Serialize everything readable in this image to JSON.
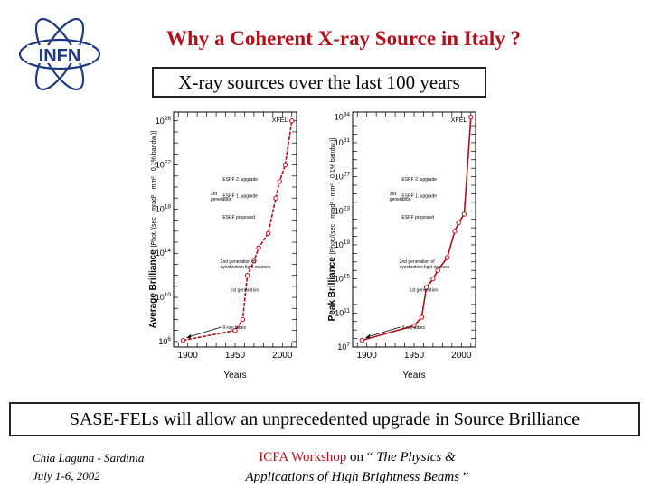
{
  "slide": {
    "logo_text": "INFN",
    "title": "Why a Coherent X-ray Source in Italy ?",
    "subtitle": "X-ray sources over the last 100 years",
    "banner": "SASE-FELs will allow an unprecedented upgrade in Source Brilliance",
    "footer_left": {
      "line1": "Chia Laguna - Sardinia",
      "line2": "July 1-6,  2002"
    },
    "footer_center": {
      "org": "ICFA Workshop",
      "on": " on “",
      "topic1": " The Physics &",
      "topic2": "Applications of High Brightness Beams",
      "close": " ”"
    }
  },
  "colors": {
    "title": "#b0101a",
    "curve": "#b0101a",
    "logo": "#1f3a80"
  },
  "chart_data": [
    {
      "type": "line",
      "x": [
        1895,
        1950,
        1958,
        1963,
        1970,
        1975,
        1985,
        1993,
        1997,
        2003,
        2010
      ],
      "y_exponent": [
        6.1,
        7.0,
        8.0,
        12.0,
        13.3,
        14.5,
        15.8,
        19.0,
        20.5,
        22.0,
        26.0
      ],
      "ylabel": "Average Brilliance",
      "ylabel_units": "[Phot./(sec · mrad² · mm² · 0.1% bandw.)]",
      "xlabel": "Years",
      "xticks": [
        "1900",
        "1950",
        "2000"
      ],
      "yticks": [
        "10^6",
        "10^10",
        "10^14",
        "10^18",
        "10^22",
        "10^26"
      ],
      "ylim_exponent": [
        5.5,
        26.8
      ],
      "xlim": [
        1885,
        2015
      ],
      "annotations": [
        "XFEL",
        "ESRF 2. upgrade",
        "3rd generation",
        "ESRF 1. upgrade",
        "ESRF proposed",
        "2nd generation of synchrotron light sources",
        "1st generation",
        "X-ray tubes"
      ]
    },
    {
      "type": "line",
      "x": [
        1895,
        1950,
        1958,
        1963,
        1970,
        1975,
        1985,
        1993,
        1997,
        2003,
        2010
      ],
      "y_exponent": [
        7.8,
        9.5,
        10.5,
        14.0,
        15.0,
        16.0,
        17.5,
        20.6,
        21.6,
        22.6,
        34.0
      ],
      "ylabel": "Peak Brilliance",
      "ylabel_units": "[Phot./(sec · mrad² · mm² · 0.1% bandw.)]",
      "xlabel": "Years",
      "xticks": [
        "1900",
        "1950",
        "2000"
      ],
      "yticks": [
        "10^7",
        "10^11",
        "10^15",
        "10^19",
        "10^23",
        "10^27",
        "10^31",
        "10^34"
      ],
      "ylim_exponent": [
        7,
        34.6
      ],
      "xlim": [
        1885,
        2015
      ],
      "annotations": [
        "XFEL",
        "ESRF 2. upgrade",
        "3rd generation",
        "ESRF 1. upgrade",
        "ESRF proposed",
        "2nd generation of synchrotron light sources",
        "1st generation",
        "X-ray tubes"
      ]
    }
  ]
}
